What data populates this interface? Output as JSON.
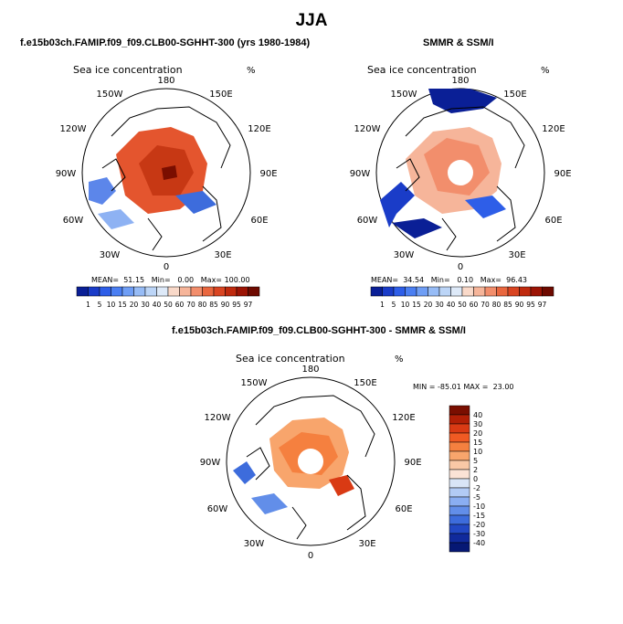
{
  "title": "JJA",
  "panels": [
    {
      "id": "model",
      "title": "f.e15b03ch.FAMIP.f09_f09.CLB00-SGHHT-300 (yrs 1980-1984)",
      "subtitle": "Sea ice concentration",
      "units": "%",
      "stats": {
        "mean_label": "MEAN=",
        "mean": "51.15",
        "min_label": "Min=",
        "min": "0.00",
        "max_label": "Max=",
        "max": "100.00"
      },
      "pole_hole": false
    },
    {
      "id": "obs",
      "title": "SMMR & SSM/I",
      "subtitle": "Sea ice concentration",
      "units": "%",
      "stats": {
        "mean_label": "MEAN=",
        "mean": "34.54",
        "min_label": "Min=",
        "min": "0.10",
        "max_label": "Max=",
        "max": "96.43"
      },
      "pole_hole": true
    },
    {
      "id": "diff",
      "title": "f.e15b03ch.FAMIP.f09_f09.CLB00-SGHHT-300 - SMMR & SSM/I",
      "subtitle": "Sea ice concentration",
      "units": "%",
      "stats": {
        "min_label": "MIN =",
        "min": "-85.01",
        "max_label": "MAX =",
        "max": "23.00"
      },
      "pole_hole": true
    }
  ],
  "longitude_labels": [
    "180",
    "150E",
    "120E",
    "90E",
    "60E",
    "30E",
    "0",
    "30W",
    "60W",
    "90W",
    "120W",
    "150W"
  ],
  "colorbar_concentration": {
    "labels": [
      "1",
      "5",
      "10",
      "15",
      "20",
      "30",
      "40",
      "50",
      "60",
      "70",
      "80",
      "85",
      "90",
      "95",
      "97"
    ],
    "colors": [
      "#0a1f96",
      "#1a3cc8",
      "#2e5ee8",
      "#4b7ff2",
      "#6f9ef5",
      "#97bcf6",
      "#bcd5f7",
      "#dde9f8",
      "#f9d9c9",
      "#f6b59a",
      "#f28e6c",
      "#e9673f",
      "#d94522",
      "#bf2a0e",
      "#9c1405",
      "#6e0a00"
    ]
  },
  "colorbar_difference": {
    "labels": [
      "40",
      "30",
      "20",
      "15",
      "10",
      "5",
      "2",
      "0",
      "-2",
      "-5",
      "-10",
      "-15",
      "-20",
      "-30",
      "-40"
    ],
    "colors": [
      "#7a0e00",
      "#b11f06",
      "#d93a14",
      "#f05a23",
      "#f5803f",
      "#f8a56c",
      "#f9c8a6",
      "#fbe3d6",
      "#d9e5f7",
      "#b2cbf5",
      "#8aaef2",
      "#628ee9",
      "#3d6cdc",
      "#2248c4",
      "#102a9c",
      "#061874"
    ]
  }
}
